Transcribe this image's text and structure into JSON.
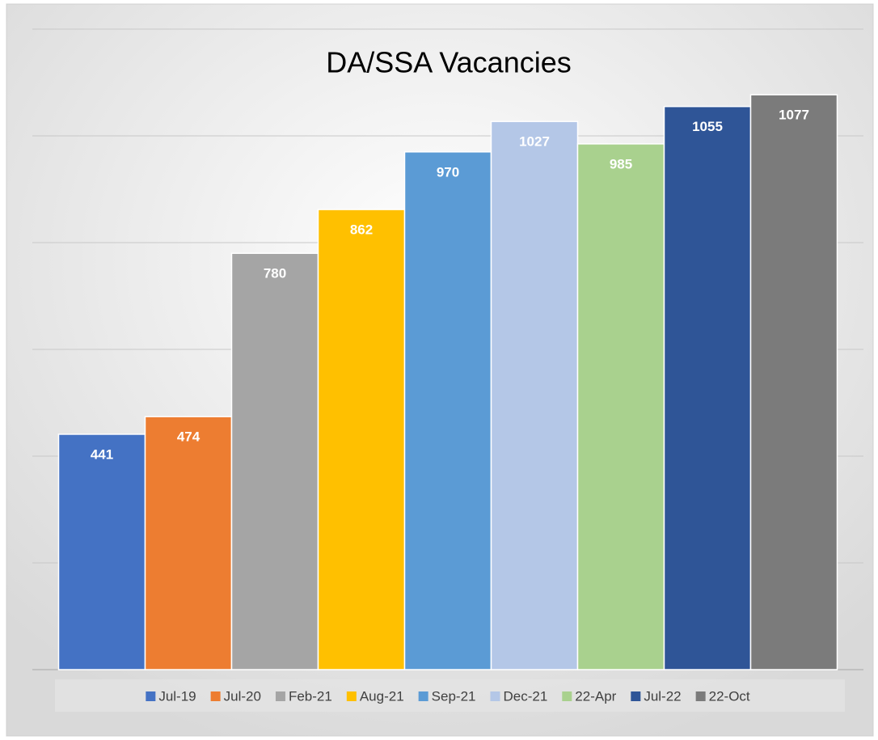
{
  "chart_data": {
    "type": "bar",
    "title": "DA/SSA Vacancies",
    "series": [
      {
        "name": "Jul-19",
        "color": "#4472c4",
        "values": [
          441
        ]
      },
      {
        "name": "Jul-20",
        "color": "#ed7d31",
        "values": [
          474
        ]
      },
      {
        "name": "Feb-21",
        "color": "#a5a5a5",
        "values": [
          780
        ]
      },
      {
        "name": "Aug-21",
        "color": "#ffc000",
        "values": [
          862
        ]
      },
      {
        "name": "Sep-21",
        "color": "#5b9bd5",
        "values": [
          970
        ]
      },
      {
        "name": "Dec-21",
        "color": "#b4c7e7",
        "values": [
          1027
        ]
      },
      {
        "name": "22-Apr",
        "color": "#a9d18e",
        "values": [
          985
        ]
      },
      {
        "name": "Jul-22",
        "color": "#2f5597",
        "values": [
          1055
        ]
      },
      {
        "name": "22-Oct",
        "color": "#7b7b7b",
        "values": [
          1077
        ]
      }
    ],
    "ylim": [
      0,
      1200
    ],
    "yticks": [
      0,
      200,
      400,
      600,
      800,
      1000,
      1200
    ],
    "grid": true,
    "legend": "bottom"
  }
}
